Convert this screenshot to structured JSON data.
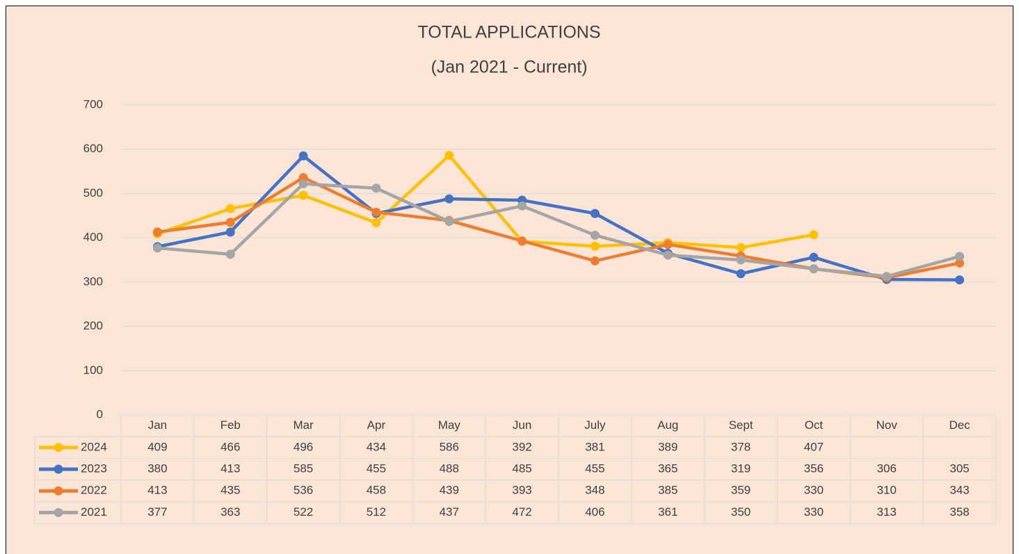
{
  "chart_data": {
    "type": "line",
    "title": "TOTAL APPLICATIONS",
    "subtitle": "(Jan 2021 - Current)",
    "categories": [
      "Jan",
      "Feb",
      "Mar",
      "Apr",
      "May",
      "Jun",
      "July",
      "Aug",
      "Sept",
      "Oct",
      "Nov",
      "Dec"
    ],
    "series": [
      {
        "name": "2024",
        "color": "#ffc000",
        "values": [
          409,
          466,
          496,
          434,
          586,
          392,
          381,
          389,
          378,
          407,
          null,
          null
        ]
      },
      {
        "name": "2023",
        "color": "#4472c4",
        "values": [
          380,
          413,
          585,
          455,
          488,
          485,
          455,
          365,
          319,
          356,
          306,
          305
        ]
      },
      {
        "name": "2022",
        "color": "#ed7d31",
        "values": [
          413,
          435,
          536,
          458,
          439,
          393,
          348,
          385,
          359,
          330,
          310,
          343
        ]
      },
      {
        "name": "2021",
        "color": "#a5a5a5",
        "values": [
          377,
          363,
          522,
          512,
          437,
          472,
          406,
          361,
          350,
          330,
          313,
          358
        ]
      }
    ],
    "ylim": [
      0,
      700
    ],
    "yticks": [
      0,
      100,
      200,
      300,
      400,
      500,
      600,
      700
    ],
    "grid": true
  }
}
